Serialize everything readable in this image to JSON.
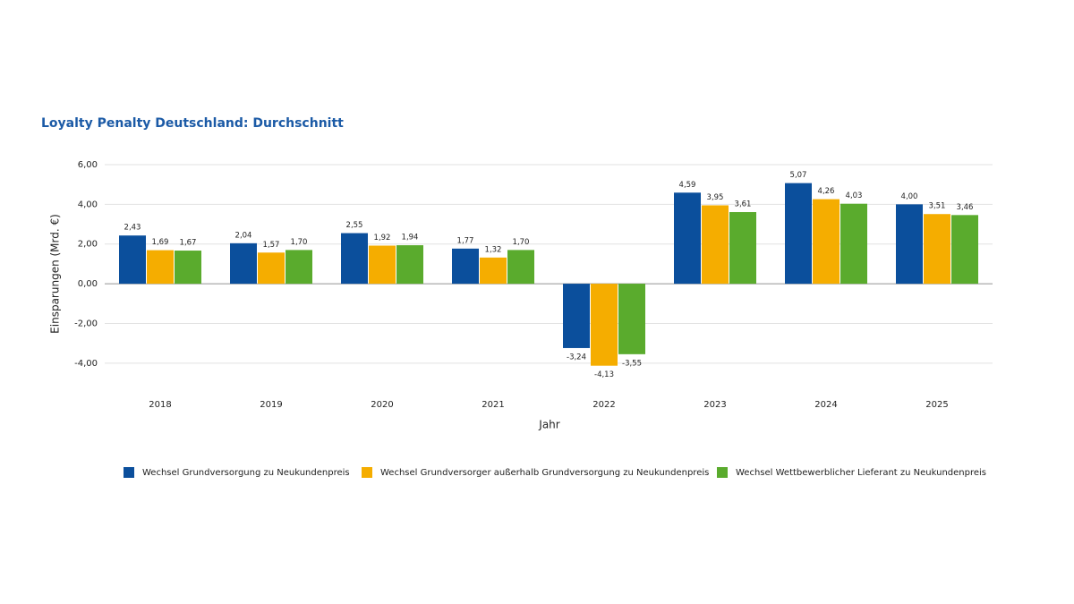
{
  "chart_data": {
    "type": "bar",
    "title": "Loyalty Penalty Deutschland: Durchschnitt",
    "x_label": "Jahr",
    "y_label": "Einsparungen (Mrd. €)",
    "categories": [
      "2018",
      "2019",
      "2020",
      "2021",
      "2022",
      "2023",
      "2024",
      "2025"
    ],
    "series": [
      {
        "name": "Wechsel Grundversorgung zu Neukundenpreis",
        "color": "#0b4f9c",
        "values": [
          2.43,
          2.04,
          2.55,
          1.77,
          -3.24,
          4.59,
          5.07,
          4.0
        ],
        "value_labels": [
          "2,43",
          "2,04",
          "2,55",
          "1,77",
          "-3,24",
          "4,59",
          "5,07",
          "4,00"
        ]
      },
      {
        "name": "Wechsel Grundversorger außerhalb Grundversorgung zu Neukundenpreis",
        "color": "#f5ad00",
        "values": [
          1.69,
          1.57,
          1.92,
          1.32,
          -4.13,
          3.95,
          4.26,
          3.51
        ],
        "value_labels": [
          "1,69",
          "1,57",
          "1,92",
          "1,32",
          "-4,13",
          "3,95",
          "4,26",
          "3,51"
        ]
      },
      {
        "name": "Wechsel Wettbewerblicher Lieferant zu Neukundenpreis",
        "color": "#5aab2d",
        "values": [
          1.67,
          1.7,
          1.94,
          1.7,
          -3.55,
          3.61,
          4.03,
          3.46
        ],
        "value_labels": [
          "1,67",
          "1,70",
          "1,94",
          "1,70",
          "-3,55",
          "3,61",
          "4,03",
          "3,46"
        ]
      }
    ],
    "ylim": [
      -5,
      6
    ],
    "yticks": [
      {
        "value": -4,
        "label": "-4,00"
      },
      {
        "value": -2,
        "label": "-2,00"
      },
      {
        "value": 0,
        "label": "0,00"
      },
      {
        "value": 2,
        "label": "2,00"
      },
      {
        "value": 4,
        "label": "4,00"
      },
      {
        "value": 6,
        "label": "6,00"
      }
    ],
    "grid": true,
    "legend": "bottom"
  }
}
